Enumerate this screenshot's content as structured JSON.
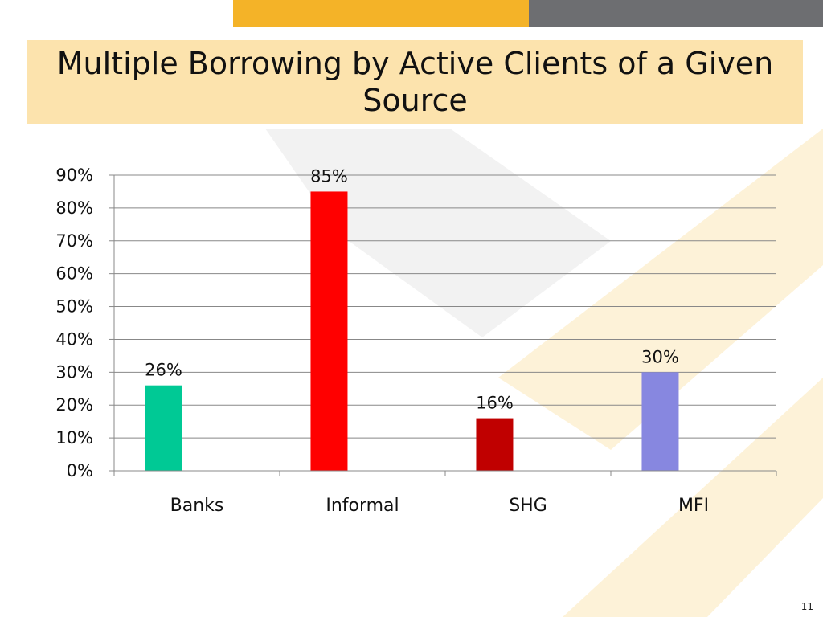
{
  "slide": {
    "title": "Multiple Borrowing by Active Clients of a Given Source",
    "page_number": "11"
  },
  "colors": {
    "accent_yellow": "#f4b328",
    "accent_gray": "#6d6e71",
    "title_background": "#fce3ad"
  },
  "chart_data": {
    "type": "bar",
    "title": "",
    "xlabel": "",
    "ylabel": "",
    "categories": [
      "Banks",
      "Informal",
      "SHG",
      "MFI"
    ],
    "values": [
      26,
      85,
      16,
      30
    ],
    "data_labels": [
      "26%",
      "85%",
      "16%",
      "30%"
    ],
    "bar_colors": [
      "#00c995",
      "#ff0000",
      "#c00000",
      "#8787e0"
    ],
    "ylim": [
      0,
      90
    ],
    "y_ticks": [
      0,
      10,
      20,
      30,
      40,
      50,
      60,
      70,
      80,
      90
    ],
    "y_tick_labels": [
      "0%",
      "10%",
      "20%",
      "30%",
      "40%",
      "50%",
      "60%",
      "70%",
      "80%",
      "90%"
    ],
    "grid": true,
    "legend": "none"
  }
}
